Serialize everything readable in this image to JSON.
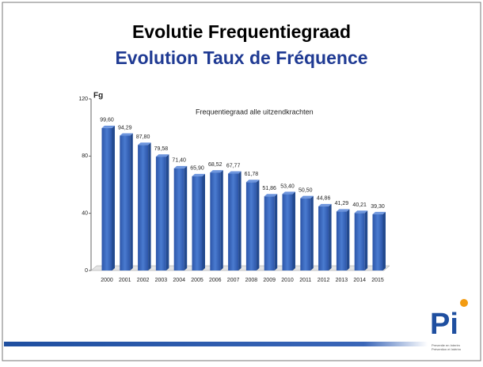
{
  "slide": {
    "title": "Evolutie Frequentiegraad",
    "subtitle": "Evolution Taux de Fréquence",
    "logo": {
      "mark": "Pi",
      "line1": "Preventie en Interim",
      "line2": "Prévention et Intérim"
    }
  },
  "chart_data": {
    "type": "bar",
    "title": "Frequentiegraad alle uitzendkrachten",
    "y_label": "Fg",
    "categories": [
      "2000",
      "2001",
      "2002",
      "2003",
      "2004",
      "2005",
      "2006",
      "2007",
      "2008",
      "2009",
      "2010",
      "2011",
      "2012",
      "2013",
      "2014",
      "2015"
    ],
    "values": [
      99.6,
      94.29,
      87.8,
      79.58,
      71.4,
      65.9,
      68.52,
      67.77,
      61.78,
      51.86,
      53.4,
      50.5,
      44.86,
      41.29,
      40.21,
      39.3
    ],
    "value_labels": [
      "99,60",
      "94,29",
      "87,80",
      "79,58",
      "71,40",
      "65,90",
      "68,52",
      "67,77",
      "61,78",
      "51,86",
      "53,40",
      "50,50",
      "44,86",
      "41,29",
      "40,21",
      "39,30"
    ],
    "color": "#3f6fc0",
    "ylim": [
      0,
      120
    ],
    "yticks": [
      0,
      40,
      80,
      120
    ]
  }
}
